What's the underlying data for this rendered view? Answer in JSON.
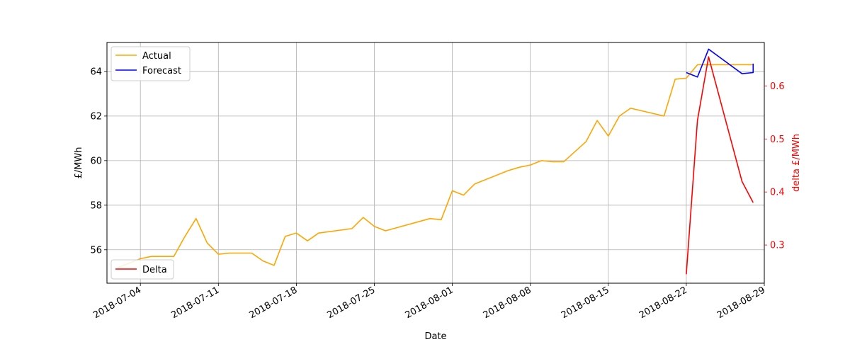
{
  "chart_data": {
    "type": "line",
    "title": "",
    "xlabel": "Date",
    "ylabel": "£/MWh",
    "y2label": "delta £/MWh",
    "xlim": [
      "2018-07-01",
      "2018-08-29"
    ],
    "ylim": [
      54.5,
      65.3
    ],
    "y2lim": [
      0.228,
      0.682
    ],
    "x_ticks": [
      "2018-07-04",
      "2018-07-11",
      "2018-07-18",
      "2018-07-25",
      "2018-08-01",
      "2018-08-08",
      "2018-08-15",
      "2018-08-22",
      "2018-08-29"
    ],
    "y_ticks": [
      56,
      58,
      60,
      62,
      64
    ],
    "y2_ticks": [
      0.3,
      0.4,
      0.5,
      0.6
    ],
    "grid": true,
    "legend_upper": {
      "position": "top-left",
      "entries": [
        "Actual",
        "Forecast"
      ]
    },
    "legend_lower": {
      "position": "bottom-left",
      "entries": [
        "Delta"
      ]
    },
    "colors": {
      "Actual": "#FFA500",
      "Forecast": "#0000FF",
      "Delta": "#FF0000",
      "right_axis": "#FF0000"
    },
    "series": [
      {
        "name": "Actual",
        "axis": "left",
        "x": [
          "2018-07-02",
          "2018-07-03",
          "2018-07-04",
          "2018-07-05",
          "2018-07-06",
          "2018-07-07",
          "2018-07-08",
          "2018-07-09",
          "2018-07-10",
          "2018-07-11",
          "2018-07-12",
          "2018-07-13",
          "2018-07-14",
          "2018-07-15",
          "2018-07-16",
          "2018-07-17",
          "2018-07-18",
          "2018-07-19",
          "2018-07-20",
          "2018-07-23",
          "2018-07-24",
          "2018-07-25",
          "2018-07-26",
          "2018-07-30",
          "2018-07-31",
          "2018-08-01",
          "2018-08-02",
          "2018-08-03",
          "2018-08-06",
          "2018-08-07",
          "2018-08-08",
          "2018-08-09",
          "2018-08-10",
          "2018-08-11",
          "2018-08-13",
          "2018-08-14",
          "2018-08-15",
          "2018-08-16",
          "2018-08-17",
          "2018-08-20",
          "2018-08-21",
          "2018-08-22",
          "2018-08-23",
          "2018-08-24",
          "2018-08-27",
          "2018-08-28"
        ],
        "y": [
          55.2,
          55.4,
          55.6,
          55.7,
          55.7,
          55.7,
          56.6,
          57.4,
          56.3,
          55.8,
          55.85,
          55.85,
          55.85,
          55.5,
          55.3,
          56.6,
          56.75,
          56.4,
          56.75,
          56.95,
          57.45,
          57.05,
          56.85,
          57.4,
          57.35,
          58.65,
          58.45,
          58.95,
          59.55,
          59.7,
          59.8,
          60.0,
          59.95,
          59.95,
          60.85,
          61.8,
          61.1,
          62.0,
          62.35,
          62.0,
          63.65,
          63.7,
          64.3,
          64.3,
          64.3,
          64.3
        ]
      },
      {
        "name": "Forecast",
        "axis": "left",
        "x": [
          "2018-08-22",
          "2018-08-23",
          "2018-08-24",
          "2018-08-27",
          "2018-08-28",
          "2018-08-28"
        ],
        "y": [
          63.95,
          63.75,
          65.0,
          63.9,
          63.95,
          64.35
        ]
      },
      {
        "name": "Delta",
        "axis": "right",
        "x": [
          "2018-08-22",
          "2018-08-23",
          "2018-08-24",
          "2018-08-27",
          "2018-08-28"
        ],
        "y": [
          0.245,
          0.535,
          0.655,
          0.42,
          0.38
        ]
      }
    ]
  }
}
